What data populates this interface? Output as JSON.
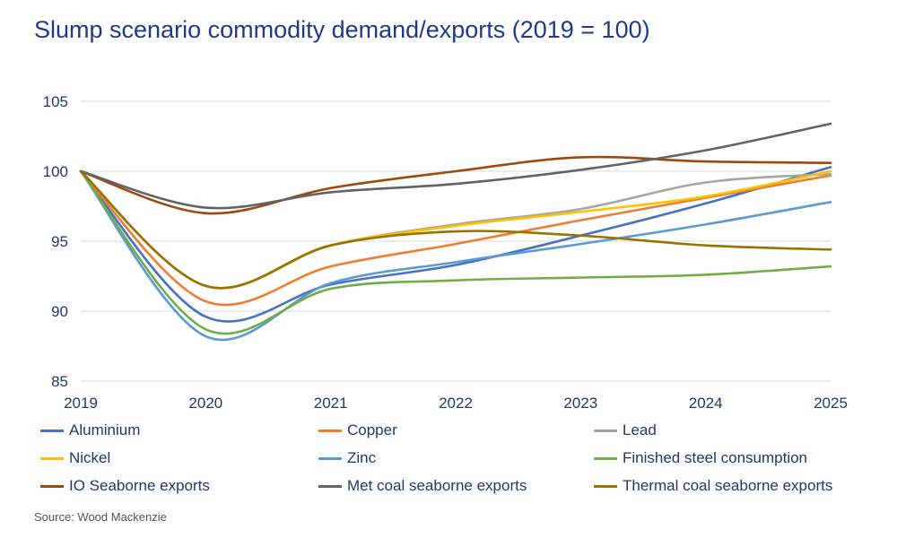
{
  "chart_data": {
    "type": "line",
    "title": "Slump scenario commodity demand/exports (2019 = 100)",
    "x": [
      "2019",
      "2020",
      "2021",
      "2022",
      "2023",
      "2024",
      "2025"
    ],
    "ylim": [
      85,
      105
    ],
    "yticks": [
      85,
      90,
      95,
      100,
      105
    ],
    "grid": true,
    "legend_placement": "bottom",
    "series": [
      {
        "name": "Aluminium",
        "color": "#4472C4",
        "values": [
          100,
          89.6,
          91.9,
          93.3,
          95.4,
          97.7,
          100.3
        ]
      },
      {
        "name": "Copper",
        "color": "#ED7D31",
        "values": [
          100,
          90.7,
          93.2,
          94.8,
          96.5,
          98.1,
          99.7
        ]
      },
      {
        "name": "Lead",
        "color": "#A5A5A5",
        "values": [
          100,
          91.8,
          94.7,
          96.2,
          97.3,
          99.2,
          99.8
        ]
      },
      {
        "name": "Nickel",
        "color": "#FFC000",
        "values": [
          100,
          91.8,
          94.7,
          96.1,
          97.1,
          98.2,
          100.0
        ]
      },
      {
        "name": "Zinc",
        "color": "#5B9BD5",
        "values": [
          100,
          88.2,
          92.0,
          93.5,
          94.8,
          96.2,
          97.8
        ]
      },
      {
        "name": "Finished steel consumption",
        "color": "#70AD47",
        "values": [
          100,
          88.7,
          91.6,
          92.2,
          92.4,
          92.6,
          93.2
        ]
      },
      {
        "name": "IO Seaborne exports",
        "color": "#9E480E",
        "values": [
          100,
          97.0,
          98.8,
          100.0,
          101.0,
          100.7,
          100.6
        ]
      },
      {
        "name": "Met coal seaborne exports",
        "color": "#636363",
        "values": [
          100,
          97.4,
          98.5,
          99.1,
          100.1,
          101.5,
          103.4
        ]
      },
      {
        "name": "Thermal coal seaborne exports",
        "color": "#997300",
        "values": [
          100,
          91.8,
          94.7,
          95.7,
          95.4,
          94.7,
          94.4
        ]
      }
    ]
  },
  "source": "Source: Wood Mackenzie"
}
